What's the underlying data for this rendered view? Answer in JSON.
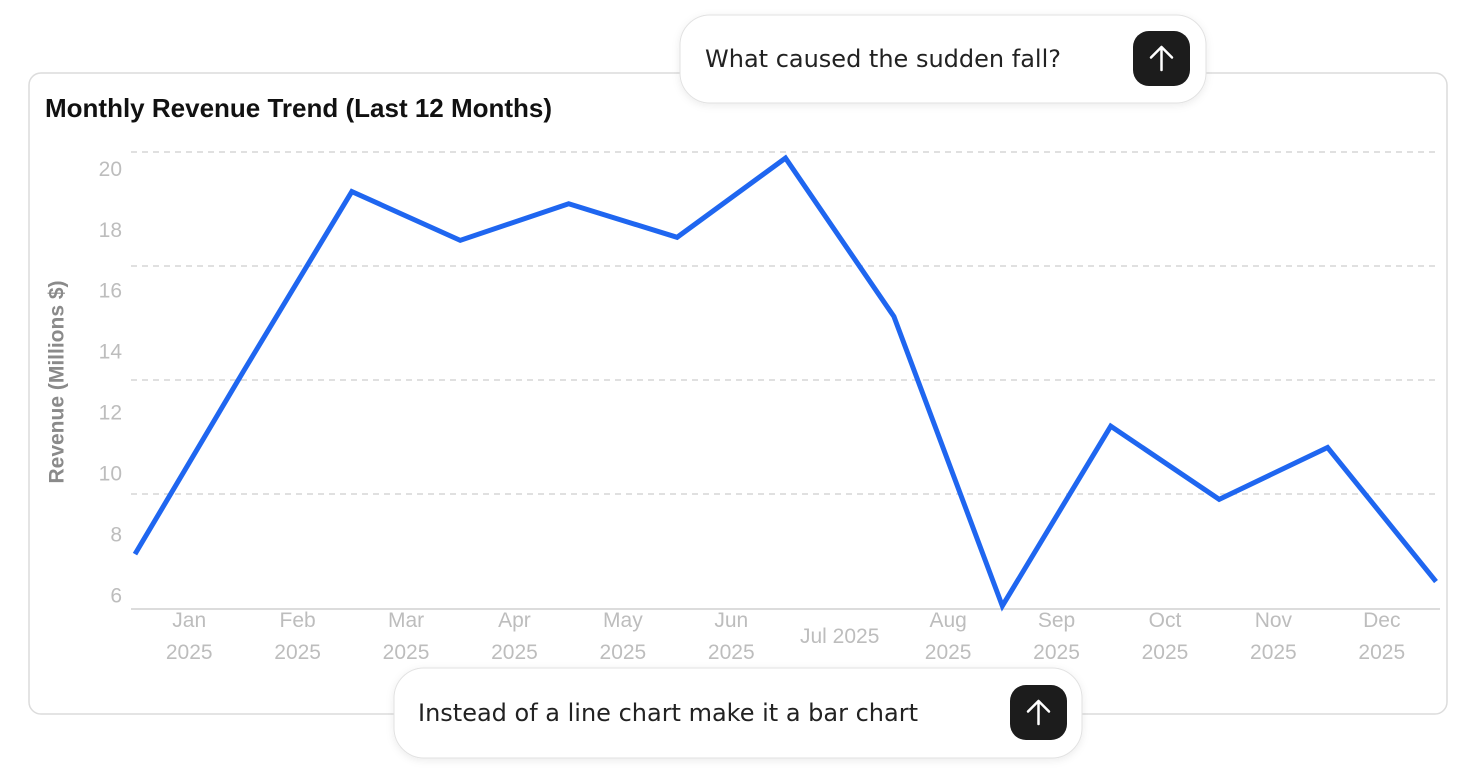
{
  "chart_data": {
    "type": "line",
    "title": "Monthly Revenue Trend (Last 12 Months)",
    "y_label": "Revenue (Millions $)",
    "x": [
      0,
      1,
      2,
      3,
      4,
      5,
      6,
      7,
      8,
      9,
      10,
      11,
      12
    ],
    "series": [
      {
        "name": "Revenue",
        "color": "#1f66f0",
        "values": [
          7.4,
          13.4,
          19.3,
          17.7,
          18.9,
          17.8,
          20.4,
          15.2,
          5.7,
          11.6,
          9.2,
          10.9,
          6.5
        ]
      }
    ],
    "xlim": [
      0,
      12
    ],
    "xticks": [
      {
        "value": 0.5,
        "label": "Jan\n2025"
      },
      {
        "value": 1.5,
        "label": "Feb\n2025"
      },
      {
        "value": 2.5,
        "label": "Mar\n2025"
      },
      {
        "value": 3.5,
        "label": "Apr\n2025"
      },
      {
        "value": 4.5,
        "label": "May\n2025"
      },
      {
        "value": 5.5,
        "label": "Jun\n2025"
      },
      {
        "value": 6.5,
        "label": "Jul 2025"
      },
      {
        "value": 7.5,
        "label": "Aug\n2025"
      },
      {
        "value": 8.5,
        "label": "Sep\n2025"
      },
      {
        "value": 9.5,
        "label": "Oct\n2025"
      },
      {
        "value": 10.5,
        "label": "Nov\n2025"
      },
      {
        "value": 11.5,
        "label": "Dec\n2025"
      }
    ],
    "ylim": [
      5.6,
      20.6
    ],
    "yticks": [
      6,
      8,
      10,
      12,
      14,
      16,
      18,
      20
    ]
  },
  "prompts": [
    "What caused the sudden fall?",
    "Instead of a line chart make it a bar chart"
  ]
}
